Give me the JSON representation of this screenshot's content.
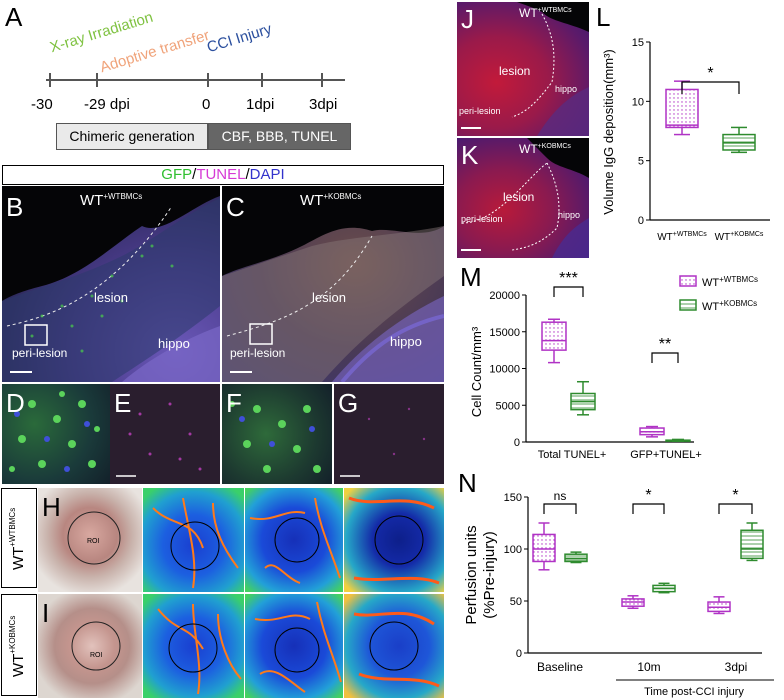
{
  "panelA": {
    "letter": "A",
    "xray": "X-ray Irradiation",
    "adoptive": "Adoptive transfer",
    "cci": "CCI Injury",
    "ticks": [
      "-30",
      "-29 dpi",
      "0",
      "1dpi",
      "3dpi"
    ],
    "box_left": "Chimeric generation",
    "box_right": "CBF, BBB, TUNEL",
    "colors": {
      "xray": "#7fc241",
      "adoptive": "#f0a37a",
      "cci": "#2b4f9e"
    }
  },
  "stain": {
    "gfp": "GFP",
    "slash1": "/",
    "tunel": "TUNEL",
    "slash2": "/",
    "dapi": "DAPI"
  },
  "panelB": {
    "letter": "B",
    "wt": "WT",
    "sup": "+WTBMCs",
    "lesion": "lesion",
    "hippo": "hippo",
    "peri": "peri-lesion"
  },
  "panelC": {
    "letter": "C",
    "wt": "WT",
    "sup": "+KOBMCs",
    "lesion": "lesion",
    "hippo": "hippo",
    "peri": "peri-lesion"
  },
  "panelD": {
    "letter": "D"
  },
  "panelE": {
    "letter": "E"
  },
  "panelF": {
    "letter": "F"
  },
  "panelG": {
    "letter": "G"
  },
  "panelH": {
    "letter": "H",
    "roi": "ROI",
    "side_wt": "WT",
    "side_sup": "+WTBMCs"
  },
  "panelI": {
    "letter": "I",
    "roi": "ROI",
    "side_wt": "WT",
    "side_sup": "+KOBMCs"
  },
  "panelJ": {
    "letter": "J",
    "wt": "WT",
    "sup": "+WTBMCs",
    "lesion": "lesion",
    "peri": "peri-lesion",
    "hippo": "hippo"
  },
  "panelK": {
    "letter": "K",
    "wt": "WT",
    "sup": "+KOBMCs",
    "lesion": "lesion",
    "peri": "peri-lesion",
    "hippo": "hippo"
  },
  "chart_data": [
    {
      "id": "L",
      "type": "box",
      "letter": "L",
      "ylabel": "Volume IgG deposition(mm³)",
      "ylim": [
        0,
        15
      ],
      "yticks": [
        "0",
        "5",
        "10",
        "15"
      ],
      "categories": [
        "WT+WTBMCs",
        "WT+KOBMCs"
      ],
      "cat_main": [
        "WT",
        "WT"
      ],
      "cat_sup": [
        "+WTBMCs",
        "+KOBMCs"
      ],
      "boxes": [
        {
          "min": 7.2,
          "q1": 7.8,
          "median": 8.0,
          "q3": 11.0,
          "max": 11.7,
          "color": "#b033c5"
        },
        {
          "min": 5.7,
          "q1": 5.9,
          "median": 6.5,
          "q3": 7.2,
          "max": 7.8,
          "color": "#2e8b2e"
        }
      ],
      "sig": [
        "*"
      ]
    },
    {
      "id": "M",
      "type": "box",
      "letter": "M",
      "ylabel": "Cell  Count/mm³",
      "ylim": [
        0,
        20000
      ],
      "yticks": [
        "0",
        "5000",
        "10000",
        "15000",
        "20000"
      ],
      "groups": [
        "Total TUNEL+",
        "GFP+TUNEL+"
      ],
      "legend": [
        {
          "main": "WT",
          "sup": "+WTBMCs",
          "color": "#b033c5"
        },
        {
          "main": "WT",
          "sup": "+KOBMCs",
          "color": "#2e8b2e"
        }
      ],
      "boxes": [
        {
          "group": 0,
          "series": 0,
          "min": 10800,
          "q1": 12500,
          "median": 13800,
          "q3": 16300,
          "max": 16700
        },
        {
          "group": 0,
          "series": 1,
          "min": 3700,
          "q1": 4400,
          "median": 5500,
          "q3": 6600,
          "max": 8200
        },
        {
          "group": 1,
          "series": 0,
          "min": 700,
          "q1": 1000,
          "median": 1400,
          "q3": 1900,
          "max": 2100
        },
        {
          "group": 1,
          "series": 1,
          "min": 100,
          "q1": 150,
          "median": 200,
          "q3": 250,
          "max": 350
        }
      ],
      "sig": [
        "***",
        "**"
      ]
    },
    {
      "id": "N",
      "type": "box",
      "letter": "N",
      "ylabel_line1": "Perfusion units",
      "ylabel_line2": "(%Pre-injury)",
      "ylim": [
        0,
        150
      ],
      "yticks": [
        "0",
        "50",
        "100",
        "150"
      ],
      "groups": [
        "Baseline",
        "10m",
        "3dpi"
      ],
      "xlabel": "Time post-CCI injury",
      "boxes": [
        {
          "group": 0,
          "series": 0,
          "min": 80,
          "q1": 88,
          "median": 100,
          "q3": 114,
          "max": 125
        },
        {
          "group": 0,
          "series": 1,
          "min": 87,
          "q1": 88,
          "median": 91,
          "q3": 95,
          "max": 97
        },
        {
          "group": 1,
          "series": 0,
          "min": 43,
          "q1": 45,
          "median": 49,
          "q3": 52,
          "max": 55
        },
        {
          "group": 1,
          "series": 1,
          "min": 58,
          "q1": 59,
          "median": 62,
          "q3": 65,
          "max": 67
        },
        {
          "group": 2,
          "series": 0,
          "min": 38,
          "q1": 40,
          "median": 44,
          "q3": 49,
          "max": 54
        },
        {
          "group": 2,
          "series": 1,
          "min": 89,
          "q1": 91,
          "median": 100,
          "q3": 118,
          "max": 125
        }
      ],
      "colors": [
        "#b033c5",
        "#2e8b2e"
      ],
      "sig": [
        "ns",
        "*",
        "*"
      ]
    }
  ]
}
